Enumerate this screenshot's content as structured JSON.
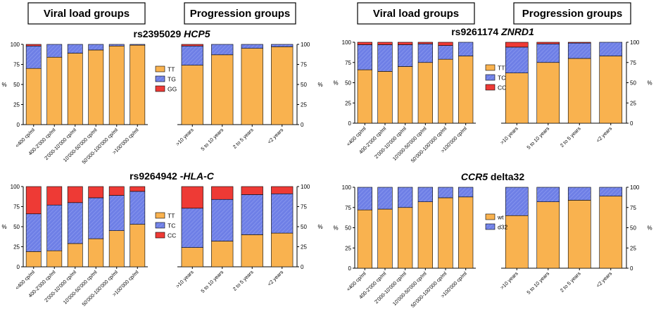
{
  "group_headers": {
    "viral_load": "Viral load groups",
    "progression": "Progression groups"
  },
  "colors": {
    "orange": "#F9B24F",
    "blue": "#6E7FE6",
    "red": "#EE3A35"
  },
  "chart_data": [
    {
      "type": "bar",
      "stacked": true,
      "title": "rs2395029 ",
      "title_italic": "HCP5",
      "ylabel": "%",
      "ylim": [
        0,
        100
      ],
      "yticks": [
        "0",
        "25",
        "50",
        "75",
        "100"
      ],
      "legend": [
        "TT",
        "TG",
        "GG"
      ],
      "viral_categories": [
        "<400 cp/ml",
        "400-2'000 cp/ml",
        "2'000-10'000 cp/ml",
        "10'000-50'000 cp/ml",
        "50'000-100'000 cp/ml",
        ">100'000 cp/ml"
      ],
      "progression_categories": [
        ">10 years",
        "5 to 10 years",
        "2 to 5 years",
        "<2 years"
      ],
      "viral_series": [
        {
          "name": "TT",
          "values": [
            70,
            84,
            89,
            93,
            98,
            99
          ]
        },
        {
          "name": "TG",
          "values": [
            28,
            16,
            11,
            7,
            2,
            1
          ]
        },
        {
          "name": "GG",
          "values": [
            2,
            0,
            0,
            0,
            0,
            0
          ]
        }
      ],
      "progression_series": [
        {
          "name": "TT",
          "values": [
            74,
            87,
            95,
            97
          ]
        },
        {
          "name": "TG",
          "values": [
            24,
            13,
            5,
            3
          ]
        },
        {
          "name": "GG",
          "values": [
            2,
            0,
            0,
            0
          ]
        }
      ]
    },
    {
      "type": "bar",
      "stacked": true,
      "title": "rs9261174 ",
      "title_italic": "ZNRD1",
      "ylabel": "%",
      "ylim": [
        0,
        100
      ],
      "yticks": [
        "0",
        "25",
        "50",
        "75",
        "100"
      ],
      "legend": [
        "TT",
        "TC",
        "CC"
      ],
      "viral_categories": [
        "<400 cp/ml",
        "400-2'000 cp/ml",
        "2'000-10'000 cp/ml",
        "10'000-50'000 cp/ml",
        "50'000-100'000 cp/ml",
        ">100'000 cp/ml"
      ],
      "progression_categories": [
        ">10 years",
        "5 to 10 years",
        "2 to 5 years",
        "<2 years"
      ],
      "viral_series": [
        {
          "name": "TT",
          "values": [
            66,
            64,
            70,
            75,
            79,
            83
          ]
        },
        {
          "name": "TC",
          "values": [
            31,
            33,
            27,
            23,
            17,
            17
          ]
        },
        {
          "name": "CC",
          "values": [
            3,
            3,
            3,
            2,
            4,
            0
          ]
        }
      ],
      "progression_series": [
        {
          "name": "TT",
          "values": [
            62,
            75,
            80,
            83
          ]
        },
        {
          "name": "TC",
          "values": [
            32,
            23,
            19,
            17
          ]
        },
        {
          "name": "CC",
          "values": [
            6,
            2,
            1,
            0
          ]
        }
      ]
    },
    {
      "type": "bar",
      "stacked": true,
      "title": "rs9264942 -",
      "title_italic": "HLA-C",
      "ylabel": "%",
      "ylim": [
        0,
        100
      ],
      "yticks": [
        "0",
        "25",
        "50",
        "75",
        "100"
      ],
      "legend": [
        "TT",
        "TC",
        "CC"
      ],
      "viral_categories": [
        "<400 cp/ml",
        "400-2'000 cp/ml",
        "2'000-10'000 cp/ml",
        "10'000-50'000 cp/ml",
        "50'000-100'000 cp/ml",
        ">100'000 cp/ml"
      ],
      "progression_categories": [
        ">10 years",
        "5 to 10 years",
        "2 to 5 years",
        "<2 years"
      ],
      "viral_series": [
        {
          "name": "TT",
          "values": [
            19,
            20,
            29,
            35,
            45,
            53
          ]
        },
        {
          "name": "TC",
          "values": [
            47,
            57,
            51,
            51,
            44,
            41
          ]
        },
        {
          "name": "CC",
          "values": [
            34,
            23,
            20,
            14,
            11,
            6
          ]
        }
      ],
      "progression_series": [
        {
          "name": "TT",
          "values": [
            24,
            32,
            40,
            42
          ]
        },
        {
          "name": "TC",
          "values": [
            49,
            52,
            50,
            49
          ]
        },
        {
          "name": "CC",
          "values": [
            27,
            16,
            10,
            9
          ]
        }
      ]
    },
    {
      "type": "bar",
      "stacked": true,
      "title": "",
      "title_italic": "CCR5",
      "title_suffix": " delta32",
      "ylabel": "%",
      "ylim": [
        0,
        100
      ],
      "yticks": [
        "0",
        "25",
        "50",
        "75",
        "100"
      ],
      "legend": [
        "wt",
        "d32"
      ],
      "viral_categories": [
        "<400 cp/ml",
        "400-2'000 cp/ml",
        "2'000-10'000 cp/ml",
        "10'000-50'000 cp/ml",
        "50'000-100'000 cp/ml",
        ">100'000 cp/ml"
      ],
      "progression_categories": [
        ">10 years",
        "5 to 10 years",
        "2 to 5 years",
        "<2 years"
      ],
      "viral_series": [
        {
          "name": "wt",
          "values": [
            72,
            73,
            75,
            82,
            87,
            88
          ]
        },
        {
          "name": "d32",
          "values": [
            28,
            27,
            25,
            18,
            13,
            12
          ]
        }
      ],
      "progression_series": [
        {
          "name": "wt",
          "values": [
            65,
            82,
            84,
            89
          ]
        },
        {
          "name": "d32",
          "values": [
            35,
            18,
            16,
            11
          ]
        }
      ]
    }
  ]
}
